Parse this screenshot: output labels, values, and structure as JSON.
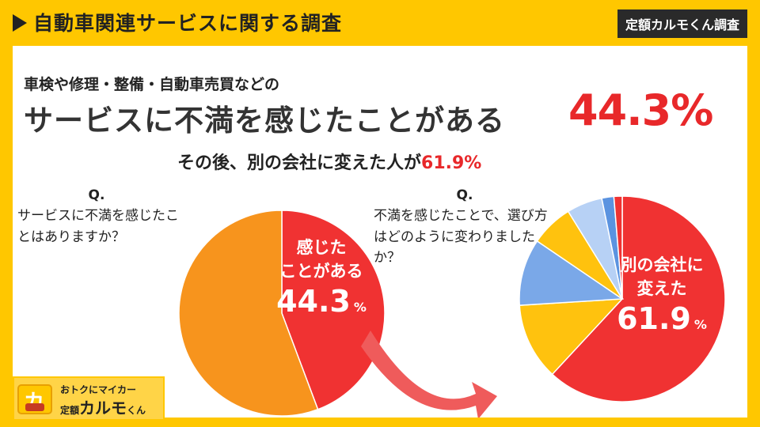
{
  "header": {
    "title": "自動車関連サービスに関する調査",
    "badge": "定額カルモくん調査"
  },
  "lead": "車検や修理・整備・自動車売買などの",
  "headline": {
    "text": "サービスに不満を感じたことがある",
    "percent": "44.3%"
  },
  "subline": {
    "text": "その後、別の会社に変えた人が",
    "percent": "61.9%"
  },
  "q1": {
    "mark": "Q.",
    "question": "サービスに不満を感じたことはありますか？"
  },
  "q2": {
    "mark": "Q.",
    "question": "不満を感じたことで、選び方はどのように変わりましたか？"
  },
  "logo": {
    "tagline": "おトクにマイカー",
    "name_small": "定額",
    "name": "カルモ",
    "name_tail": "くん"
  },
  "colors": {
    "red": "#f03232",
    "orange": "#f7941d",
    "yellow": "#ffc20e",
    "blue": "#7aa8e8",
    "light_blue": "#b7d1f5",
    "mid_blue": "#5b93e0",
    "arrow": "#ef5b5b"
  },
  "chart_data": [
    {
      "type": "pie",
      "slices": [
        {
          "label": "感じたことがある",
          "value": 44.3,
          "color": "#f03232"
        },
        {
          "label": "",
          "value": 55.7,
          "color": "#f7941d"
        }
      ],
      "highlight": {
        "label_line1": "感じた",
        "label_line2": "ことがある",
        "value": "44.3",
        "unit": "%"
      }
    },
    {
      "type": "pie",
      "slices": [
        {
          "label": "別の会社に変えた",
          "value": 61.9,
          "color": "#f03232"
        },
        {
          "label": "",
          "value": 12.1,
          "color": "#ffc20e"
        },
        {
          "label": "",
          "value": 10.5,
          "color": "#7aa8e8"
        },
        {
          "label": "",
          "value": 6.7,
          "color": "#ffc20e"
        },
        {
          "label": "",
          "value": 5.6,
          "color": "#b7d1f5"
        },
        {
          "label": "",
          "value": 1.9,
          "color": "#5b93e0"
        },
        {
          "label": "",
          "value": 1.3,
          "color": "#f03232"
        }
      ],
      "highlight": {
        "label_line1": "別の会社に",
        "label_line2": "変えた",
        "value": "61.9",
        "unit": "%"
      }
    }
  ]
}
